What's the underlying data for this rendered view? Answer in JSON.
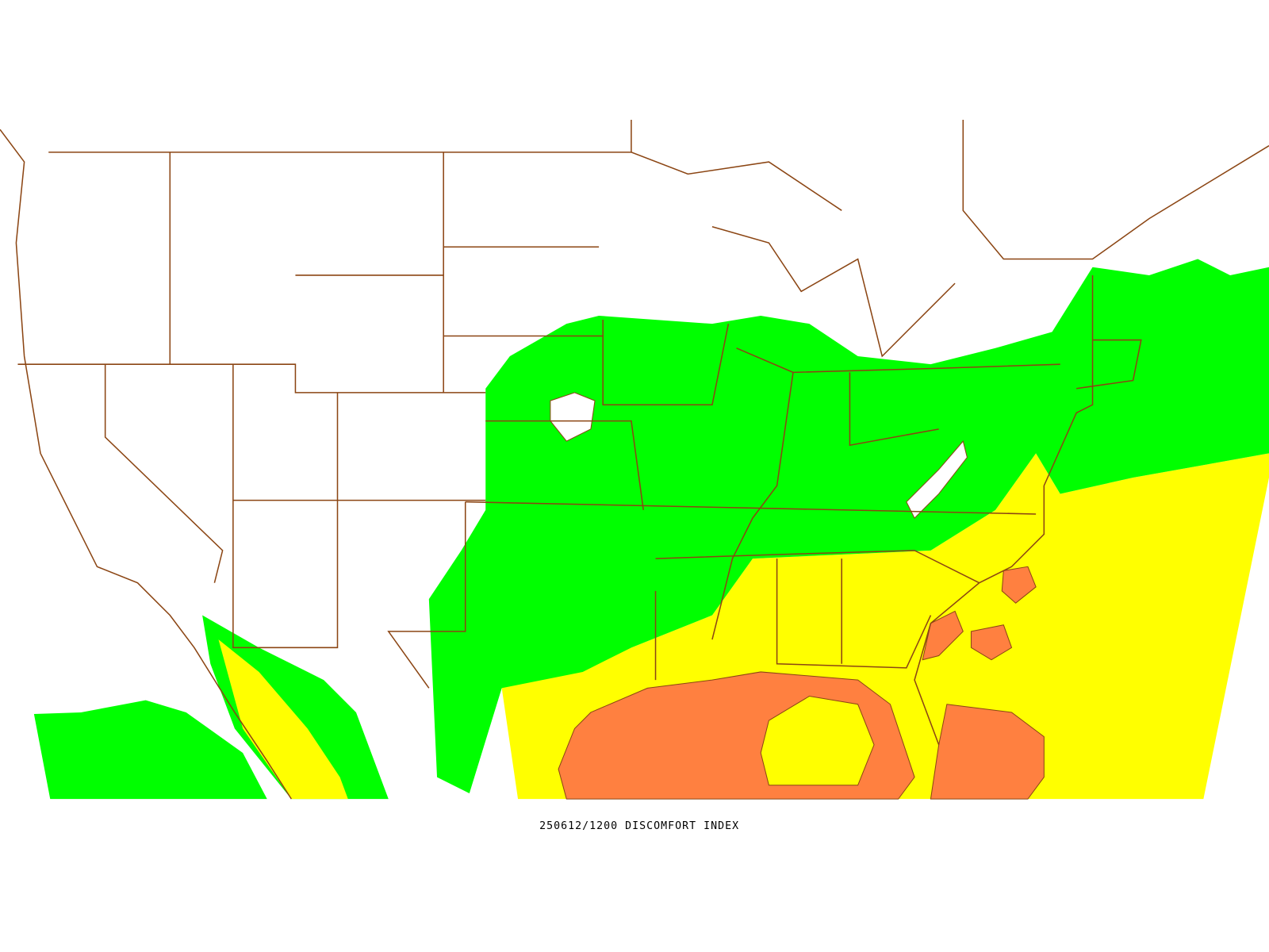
{
  "map": {
    "caption": "250612/1200 DISCOMFORT INDEX"
  }
}
